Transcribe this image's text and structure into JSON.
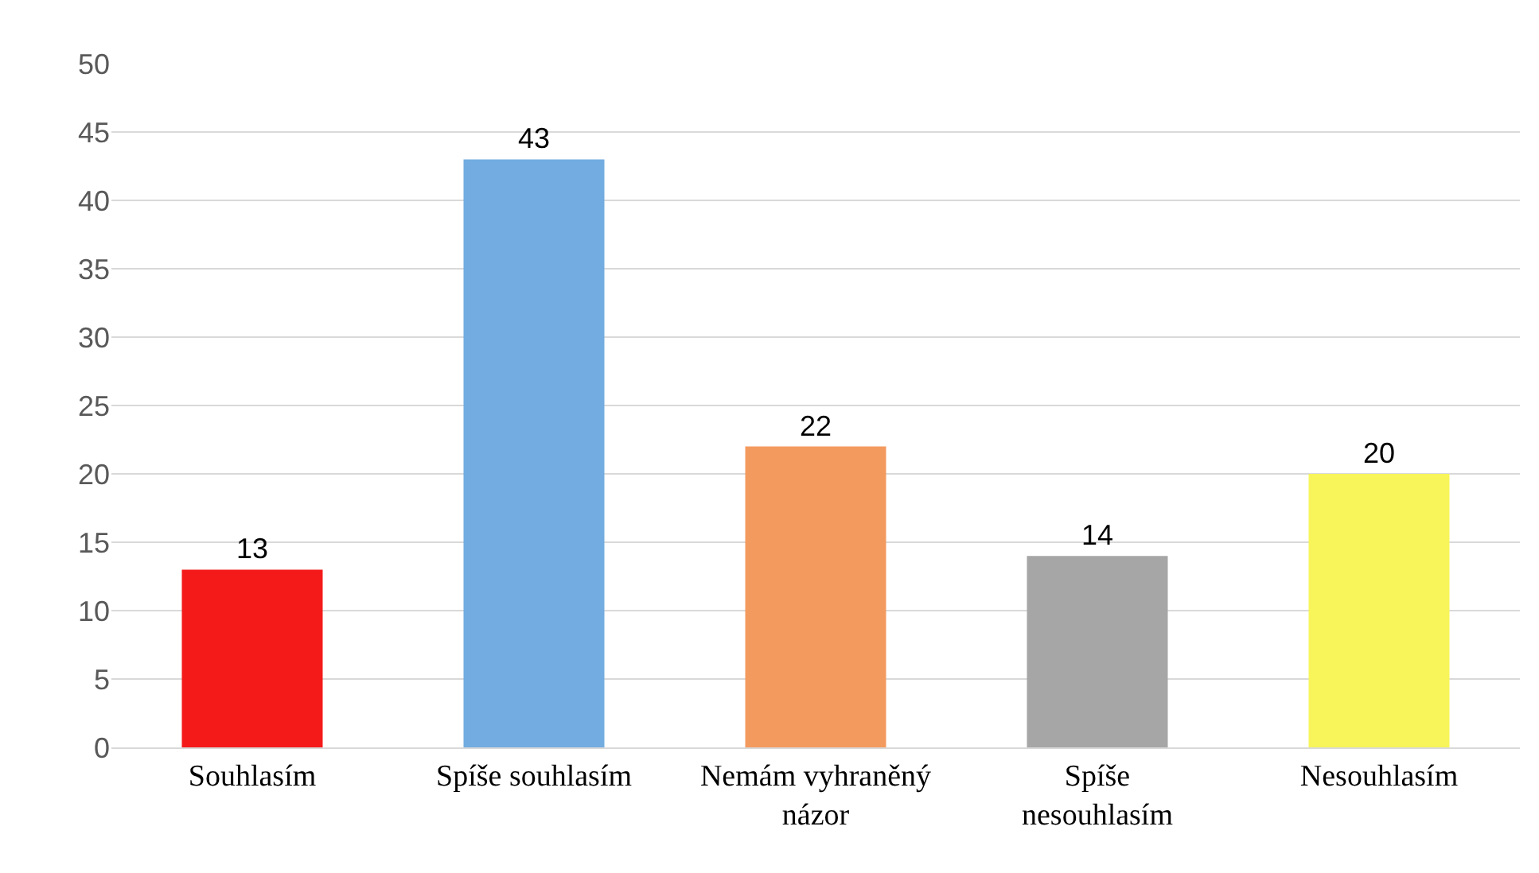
{
  "chart_data": {
    "type": "bar",
    "categories": [
      "Souhlasím",
      "Spíše souhlasím",
      "Nemám vyhraněný názor",
      "Spíše nesouhlasím",
      "Nesouhlasím"
    ],
    "values": [
      13,
      43,
      22,
      14,
      20
    ],
    "colors": [
      "#f41a1a",
      "#72ace0",
      "#f39a5e",
      "#a6a6a6",
      "#f7f55a"
    ],
    "ylim": [
      0,
      50
    ],
    "yticks": [
      0,
      5,
      10,
      15,
      20,
      25,
      30,
      35,
      40,
      45,
      50
    ],
    "grid": "y",
    "data_labels": true
  }
}
